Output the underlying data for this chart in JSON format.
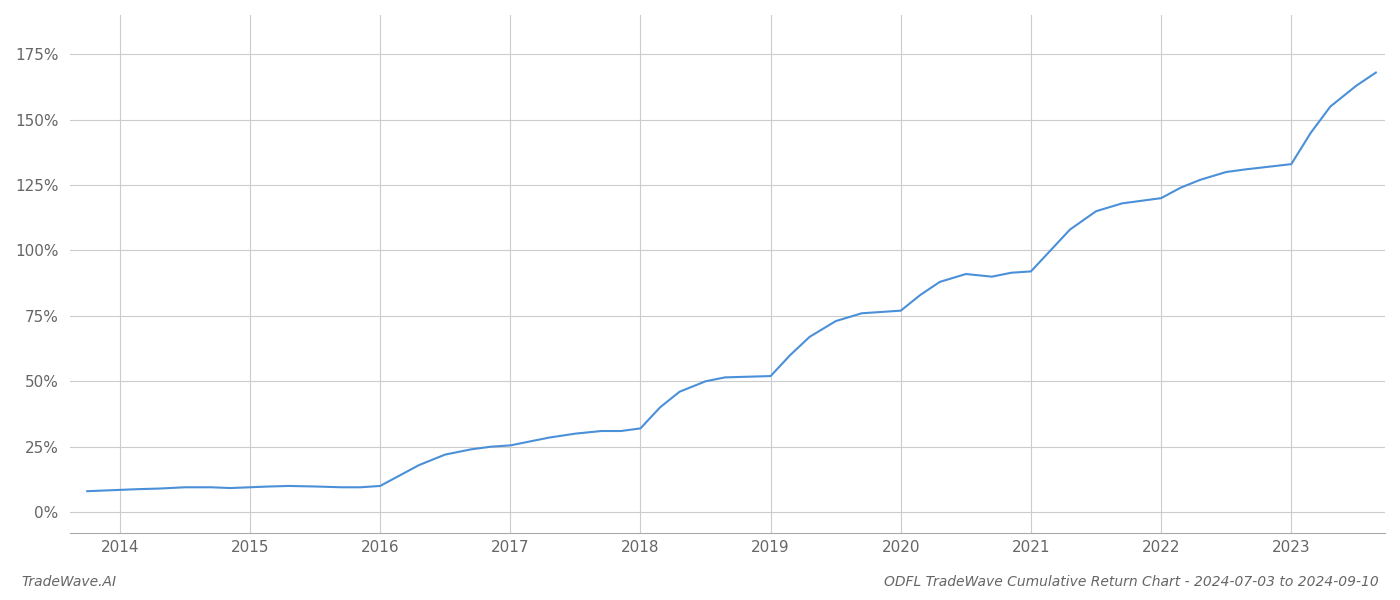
{
  "title": "ODFL TradeWave Cumulative Return Chart - 2024-07-03 to 2024-09-10",
  "watermark": "TradeWave.AI",
  "line_color": "#4a90d9",
  "background_color": "#ffffff",
  "grid_color": "#cccccc",
  "x_years": [
    2014,
    2015,
    2016,
    2017,
    2018,
    2019,
    2020,
    2021,
    2022,
    2023
  ],
  "y_ticks": [
    0,
    25,
    50,
    75,
    100,
    125,
    150,
    175
  ],
  "xlim_start": 2013.62,
  "xlim_end": 2023.72,
  "ylim_min": -8,
  "ylim_max": 190,
  "data_x": [
    2013.75,
    2014.0,
    2014.15,
    2014.3,
    2014.5,
    2014.7,
    2014.85,
    2015.0,
    2015.15,
    2015.3,
    2015.5,
    2015.7,
    2015.85,
    2016.0,
    2016.15,
    2016.3,
    2016.5,
    2016.7,
    2016.85,
    2017.0,
    2017.15,
    2017.3,
    2017.5,
    2017.7,
    2017.85,
    2018.0,
    2018.15,
    2018.3,
    2018.5,
    2018.65,
    2019.0,
    2019.15,
    2019.3,
    2019.5,
    2019.7,
    2019.85,
    2020.0,
    2020.15,
    2020.3,
    2020.5,
    2020.7,
    2020.85,
    2021.0,
    2021.15,
    2021.3,
    2021.5,
    2021.7,
    2021.85,
    2022.0,
    2022.15,
    2022.3,
    2022.5,
    2022.65,
    2023.0,
    2023.15,
    2023.3,
    2023.5,
    2023.65
  ],
  "data_y": [
    8,
    8.5,
    8.8,
    9.0,
    9.5,
    9.5,
    9.2,
    9.5,
    9.8,
    10.0,
    9.8,
    9.5,
    9.5,
    10.0,
    14.0,
    18.0,
    22.0,
    24.0,
    25.0,
    25.5,
    27.0,
    28.5,
    30.0,
    31.0,
    31.0,
    32.0,
    40.0,
    46.0,
    50.0,
    51.5,
    52.0,
    60.0,
    67.0,
    73.0,
    76.0,
    76.5,
    77.0,
    83.0,
    88.0,
    91.0,
    90.0,
    91.5,
    92.0,
    100.0,
    108.0,
    115.0,
    118.0,
    119.0,
    120.0,
    124.0,
    127.0,
    130.0,
    131.0,
    133.0,
    145.0,
    155.0,
    163.0,
    168.0
  ]
}
